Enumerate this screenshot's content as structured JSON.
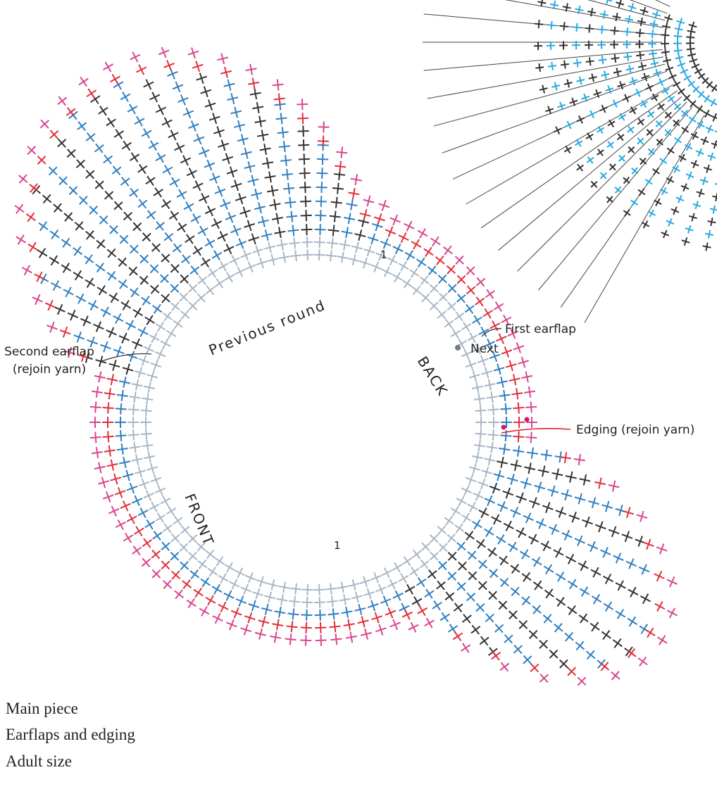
{
  "diagram": {
    "ring_labels": {
      "previous_round": "Previous round",
      "back": "BACK",
      "front": "FRONT"
    },
    "round_markers": [
      "1",
      "1"
    ],
    "callouts": {
      "first_earflap": "First earflap",
      "next": "Next",
      "second_earflap": [
        "Second earflap",
        "(rejoin yarn)"
      ],
      "edging": "Edging (rejoin yarn)"
    },
    "caption": [
      "Main piece",
      "Earflaps and edging",
      "Adult size"
    ]
  }
}
